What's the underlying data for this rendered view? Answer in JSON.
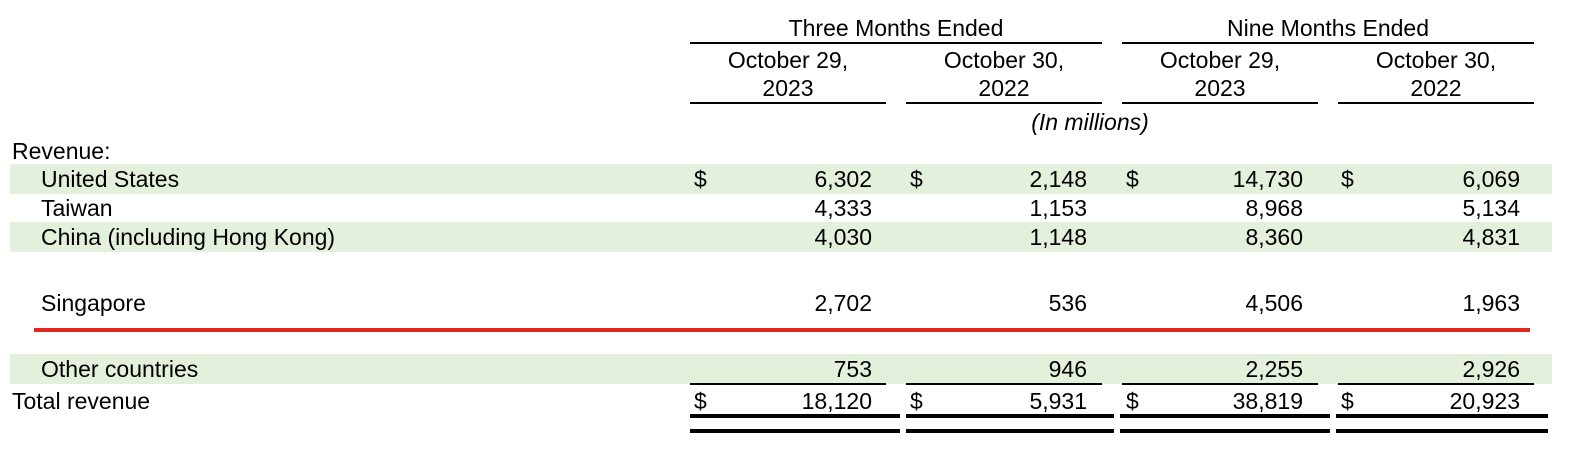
{
  "header": {
    "group_three": "Three Months Ended",
    "group_nine": "Nine Months Ended",
    "columns": [
      {
        "line1": "October 29,",
        "line2": "2023"
      },
      {
        "line1": "October 30,",
        "line2": "2022"
      },
      {
        "line1": "October 29,",
        "line2": "2023"
      },
      {
        "line1": "October 30,",
        "line2": "2022"
      }
    ],
    "units": "(In millions)"
  },
  "section_label": "Revenue:",
  "currency_symbol": "$",
  "rows": [
    {
      "label": "United States",
      "values": [
        "6,302",
        "2,148",
        "14,730",
        "6,069"
      ]
    },
    {
      "label": "Taiwan",
      "values": [
        "4,333",
        "1,153",
        "8,968",
        "5,134"
      ]
    },
    {
      "label": "China (including Hong Kong)",
      "values": [
        "4,030",
        "1,148",
        "8,360",
        "4,831"
      ]
    },
    {
      "label": "Singapore",
      "values": [
        "2,702",
        "536",
        "4,506",
        "1,963"
      ]
    },
    {
      "label": "Other countries",
      "values": [
        "753",
        "946",
        "2,255",
        "2,926"
      ]
    }
  ],
  "total": {
    "label": "Total revenue",
    "values": [
      "18,120",
      "5,931",
      "38,819",
      "20,923"
    ]
  },
  "colors": {
    "band": "#e3f0db",
    "divider": "#e0281e"
  }
}
